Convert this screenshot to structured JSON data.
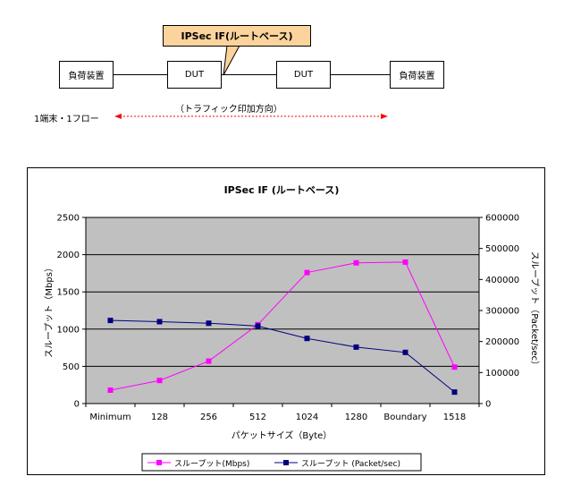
{
  "diagram": {
    "load_left": "負荷装置",
    "dut_left": "DUT",
    "dut_right": "DUT",
    "load_right": "負荷装置",
    "callout": "IPSec IF(ルートベース)",
    "direction": "（トラフィック印加方向）",
    "terminal": "1端末・1フロー",
    "colors": {
      "callout": "#fbd39c",
      "arrow": "#ff0000"
    }
  },
  "chart_data": {
    "type": "line",
    "title": "IPSec IF (ルートベース)",
    "xlabel": "パケットサイズ（Byte）",
    "ylabel": "スループット（Mbps）",
    "y2label": "スループット（Packet/sec）",
    "categories": [
      "Minimum",
      "128",
      "256",
      "512",
      "1024",
      "1280",
      "Boundary",
      "1518"
    ],
    "ylim": [
      0,
      2500
    ],
    "y_ticks": [
      0,
      500,
      1000,
      1500,
      2000,
      2500
    ],
    "y2lim": [
      0,
      600000
    ],
    "y2_ticks": [
      0,
      100000,
      200000,
      300000,
      400000,
      500000,
      600000
    ],
    "grid": true,
    "legend_position": "bottom",
    "plot_background": "#c0c0c0",
    "series": [
      {
        "name": "スループット(Mbps)",
        "axis": "left",
        "color": "#ff00ff",
        "values": [
          180,
          310,
          570,
          1060,
          1760,
          1890,
          1900,
          490
        ]
      },
      {
        "name": "スループット (Packet/sec)",
        "axis": "right",
        "color": "#000080",
        "values": [
          268000,
          264000,
          259000,
          250000,
          210000,
          182000,
          165000,
          37000
        ]
      }
    ]
  }
}
